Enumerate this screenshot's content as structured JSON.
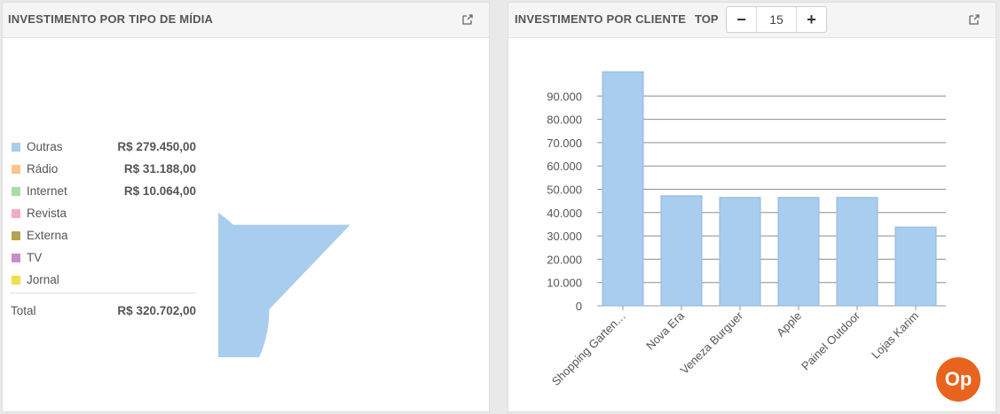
{
  "media_panel": {
    "title": "INVESTIMENTO POR TIPO DE MÍDIA",
    "legend": [
      {
        "name": "Outras",
        "value": "R$ 279.450,00",
        "color": "#a8cdee"
      },
      {
        "name": "Rádio",
        "value": "R$ 31.188,00",
        "color": "#fbc688"
      },
      {
        "name": "Internet",
        "value": "R$ 10.064,00",
        "color": "#a9dca5"
      },
      {
        "name": "Revista",
        "value": "",
        "color": "#f7a9c4"
      },
      {
        "name": "Externa",
        "value": "",
        "color": "#b5a353"
      },
      {
        "name": "TV",
        "value": "",
        "color": "#c391c7"
      },
      {
        "name": "Jornal",
        "value": "",
        "color": "#f0de4a"
      }
    ],
    "total_label": "Total",
    "total_value": "R$ 320.702,00"
  },
  "client_panel": {
    "title": "INVESTIMENTO POR CLIENTE",
    "top_label": "TOP",
    "top_value": "15",
    "minus_label": "−",
    "plus_label": "+"
  },
  "logo": {
    "text": "Op"
  },
  "chart_data": [
    {
      "type": "pie",
      "labels": [
        "Outras",
        "Rádio",
        "Internet",
        "Revista",
        "Externa",
        "TV",
        "Jornal"
      ],
      "values": [
        279450,
        31188,
        10064,
        0,
        0,
        0,
        0
      ],
      "colors": [
        "#a8cdee",
        "#fbc688",
        "#a9dca5",
        "#f7a9c4",
        "#b5a353",
        "#c391c7",
        "#f0de4a"
      ]
    },
    {
      "type": "bar",
      "categories": [
        "Shopping Garten…",
        "Nova Era",
        "Veneza Burguer",
        "Apple",
        "Painel Outdoor",
        "Lojas Karim"
      ],
      "values": [
        100500,
        47200,
        46500,
        46500,
        46500,
        33800
      ],
      "ylim": [
        0,
        100000
      ],
      "yticks": [
        "0",
        "10.000",
        "20.000",
        "30.000",
        "40.000",
        "50.000",
        "60.000",
        "70.000",
        "80.000",
        "90.000"
      ],
      "bar_color": "#a8cdee",
      "grid": true
    }
  ]
}
